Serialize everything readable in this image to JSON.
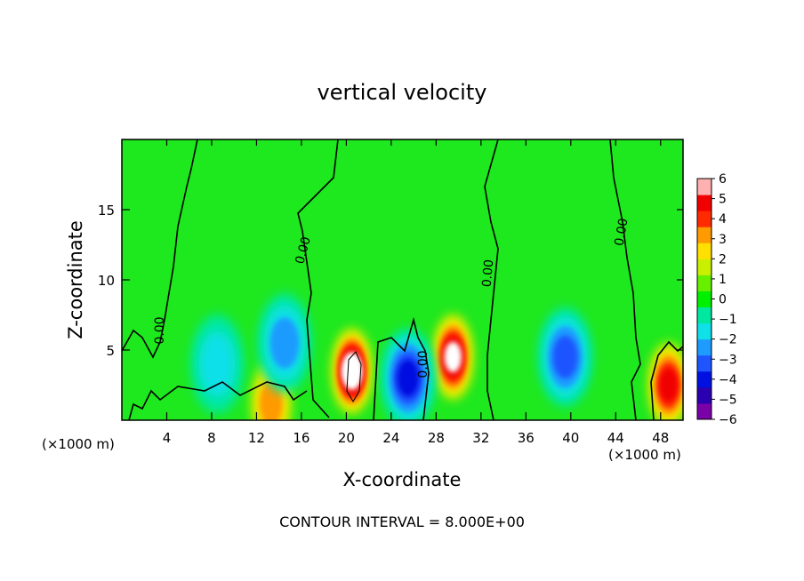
{
  "chart_data": {
    "type": "heatmap",
    "title": "vertical velocity",
    "xlabel": "X-coordinate",
    "ylabel": "Z-coordinate",
    "x_unit_left": "(×1000 m)",
    "x_unit_right": "(×1000 m)",
    "footer": "CONTOUR INTERVAL = 8.000E+00",
    "xlim": [
      0,
      50
    ],
    "ylim": [
      0,
      20
    ],
    "xticks": [
      "4",
      "8",
      "12",
      "16",
      "20",
      "24",
      "28",
      "32",
      "36",
      "40",
      "44",
      "48"
    ],
    "yticks": [
      "5",
      "10",
      "15"
    ],
    "colorbar": {
      "range": [
        -6,
        6
      ],
      "labels": [
        "6",
        "5",
        "4",
        "3",
        "2",
        "1",
        "0",
        "-1",
        "-2",
        "-3",
        "-4",
        "-5",
        "-6"
      ],
      "colors": [
        "#7a00a8",
        "#2a00b0",
        "#0010e0",
        "#1f55ff",
        "#1e9bff",
        "#10e0e8",
        "#00e8a0",
        "#00f000",
        "#66f000",
        "#c8f000",
        "#ffe000",
        "#ff9a00",
        "#ff2a00",
        "#f00000",
        "#ffb0b0"
      ]
    },
    "contour_label": "0.00",
    "features": [
      {
        "type": "updraft",
        "x": 20.5,
        "z": 3.5,
        "peak": 7
      },
      {
        "type": "updraft",
        "x": 29.5,
        "z": 4.5,
        "peak": 6
      },
      {
        "type": "updraft",
        "x": 48.7,
        "z": 2.5,
        "peak": 4.5
      },
      {
        "type": "updraft",
        "x": 13.3,
        "z": 1.2,
        "peak": 3
      },
      {
        "type": "downdraft",
        "x": 25.5,
        "z": 3.0,
        "peak": -4.5
      },
      {
        "type": "downdraft",
        "x": 39.5,
        "z": 4.5,
        "peak": -4
      },
      {
        "type": "downdraft",
        "x": 14.5,
        "z": 5.5,
        "peak": -2.5
      },
      {
        "type": "downdraft",
        "x": 8.5,
        "z": 4.0,
        "peak": -1.5
      }
    ]
  },
  "colors": {
    "background": "#ffffff",
    "axis": "#000000",
    "field": "#00e000"
  }
}
